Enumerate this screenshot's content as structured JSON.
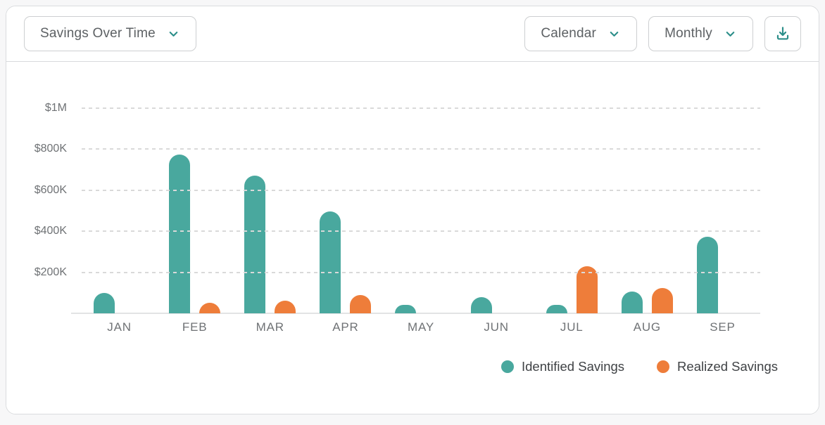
{
  "header": {
    "metric_dropdown": {
      "label": "Savings Over Time"
    },
    "calendar_dropdown": {
      "label": "Calendar"
    },
    "interval_dropdown": {
      "label": "Monthly"
    }
  },
  "colors": {
    "identified_savings": "#49A89E",
    "realized_savings": "#EE7D3A",
    "accent_teal": "#2B8E89"
  },
  "chart_data": {
    "type": "bar",
    "title": "Savings Over Time",
    "categories": [
      "JAN",
      "FEB",
      "MAR",
      "APR",
      "MAY",
      "JUN",
      "JUL",
      "AUG",
      "SEP"
    ],
    "series": [
      {
        "name": "Identified Savings",
        "color": "#49A89E",
        "values": [
          100000,
          775000,
          670000,
          495000,
          40000,
          80000,
          40000,
          105000,
          375000
        ]
      },
      {
        "name": "Realized Savings",
        "color": "#EE7D3A",
        "values": [
          0,
          50000,
          60000,
          90000,
          0,
          0,
          230000,
          125000,
          0
        ]
      }
    ],
    "yticks": [
      {
        "label": "$1M",
        "value": 1000000
      },
      {
        "label": "$800K",
        "value": 800000
      },
      {
        "label": "$600K",
        "value": 600000
      },
      {
        "label": "$400K",
        "value": 400000
      },
      {
        "label": "$200K",
        "value": 200000
      }
    ],
    "ylim": [
      0,
      1000000
    ],
    "grid": "horizontal-dashed",
    "legend_position": "bottom-right"
  }
}
